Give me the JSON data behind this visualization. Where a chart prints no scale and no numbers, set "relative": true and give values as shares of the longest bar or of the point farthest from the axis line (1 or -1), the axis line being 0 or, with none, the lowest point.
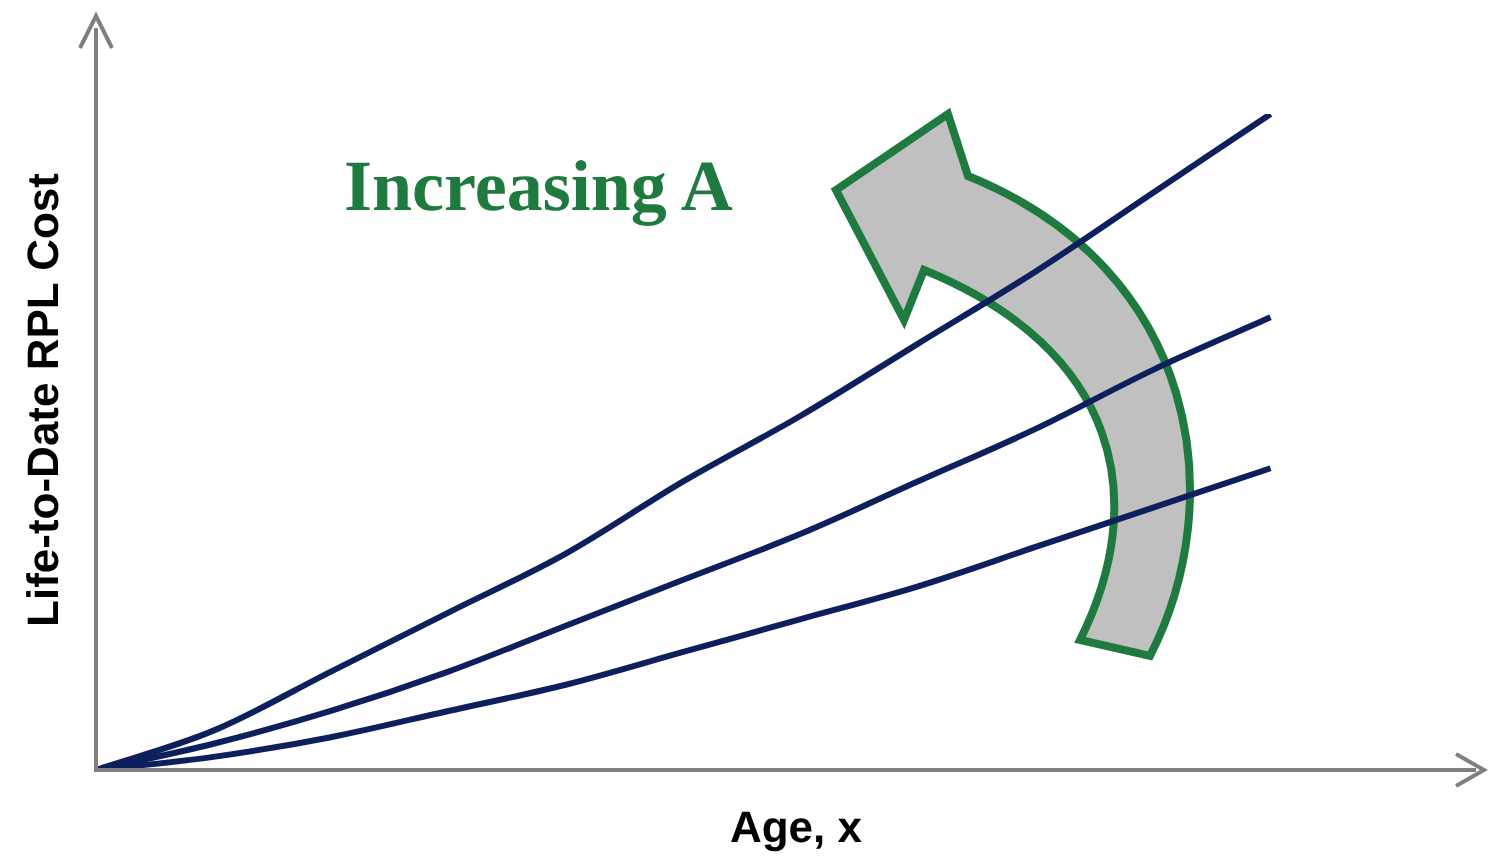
{
  "chart_data": {
    "type": "line",
    "relative": true,
    "xlabel": "Age, x",
    "ylabel": "Life-to-Date RPL Cost",
    "annotations": [
      "Increasing A"
    ],
    "categories": [
      null,
      null,
      null,
      null,
      null,
      null,
      null,
      null,
      null,
      null,
      null,
      null
    ],
    "series": [
      {
        "color": "#0d1f5c",
        "values": [
          0,
          0.06,
          0.15,
          0.24,
          0.33,
          0.44,
          0.54,
          0.65,
          0.76,
          0.88,
          1,
          null
        ]
      },
      {
        "color": "#0d1f5c",
        "values": [
          0,
          0.04,
          0.09,
          0.15,
          0.22,
          0.29,
          0.36,
          0.44,
          0.52,
          0.61,
          0.69,
          null
        ]
      },
      {
        "color": "#0d1f5c",
        "values": [
          0,
          0.02,
          0.05,
          0.09,
          0.13,
          0.18,
          0.23,
          0.28,
          0.34,
          0.4,
          0.46,
          null
        ]
      }
    ]
  }
}
